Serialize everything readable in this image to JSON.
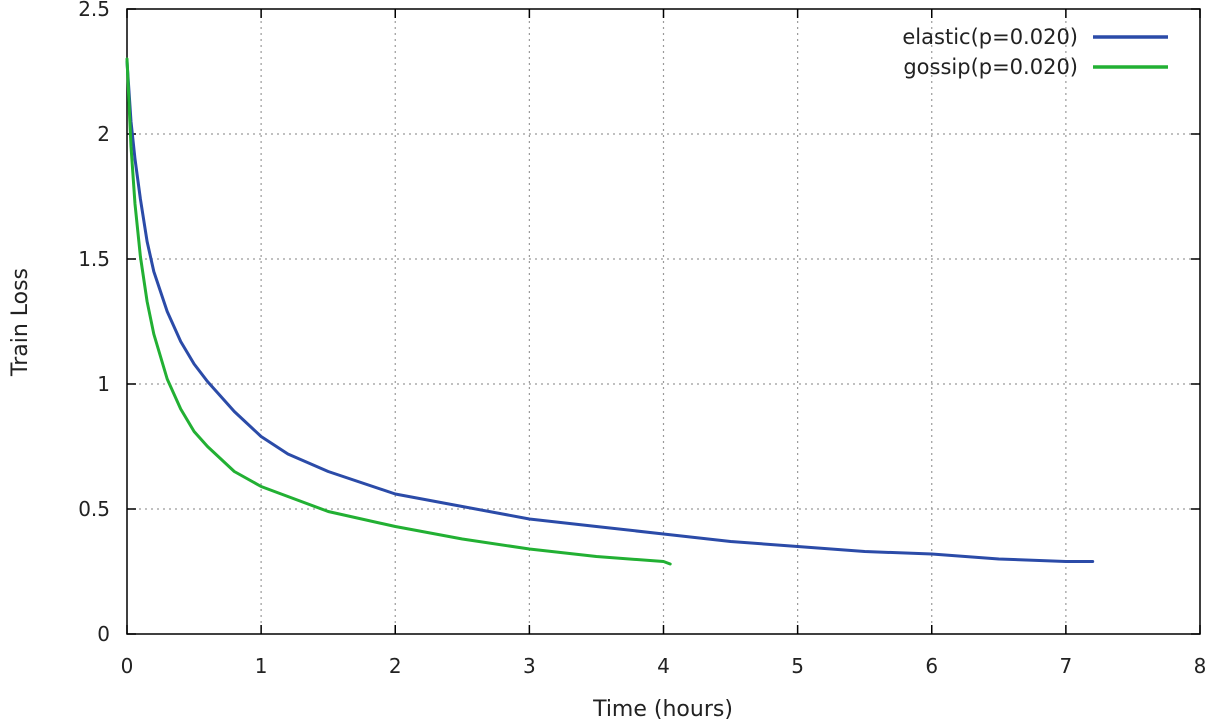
{
  "chart_data": {
    "type": "line",
    "title": "",
    "xlabel": "Time (hours)",
    "ylabel": "Train Loss",
    "xlim": [
      0,
      8
    ],
    "ylim": [
      0,
      2.5
    ],
    "x_ticks": [
      "0",
      "1",
      "2",
      "3",
      "4",
      "5",
      "6",
      "7",
      "8"
    ],
    "y_ticks": [
      "0",
      "0.5",
      "1",
      "1.5",
      "2",
      "2.5"
    ],
    "grid": true,
    "legend_position": "top-right",
    "series": [
      {
        "name": "elastic(p=0.020)",
        "color": "#2b4ba8",
        "points": [
          [
            0.0,
            2.29
          ],
          [
            0.03,
            2.05
          ],
          [
            0.06,
            1.9
          ],
          [
            0.1,
            1.74
          ],
          [
            0.15,
            1.57
          ],
          [
            0.2,
            1.45
          ],
          [
            0.3,
            1.29
          ],
          [
            0.4,
            1.17
          ],
          [
            0.5,
            1.08
          ],
          [
            0.6,
            1.01
          ],
          [
            0.8,
            0.89
          ],
          [
            1.0,
            0.79
          ],
          [
            1.2,
            0.72
          ],
          [
            1.5,
            0.65
          ],
          [
            2.0,
            0.56
          ],
          [
            2.5,
            0.51
          ],
          [
            3.0,
            0.46
          ],
          [
            3.5,
            0.43
          ],
          [
            4.0,
            0.4
          ],
          [
            4.5,
            0.37
          ],
          [
            5.0,
            0.35
          ],
          [
            5.5,
            0.33
          ],
          [
            6.0,
            0.32
          ],
          [
            6.5,
            0.3
          ],
          [
            7.0,
            0.29
          ],
          [
            7.2,
            0.29
          ]
        ]
      },
      {
        "name": "gossip(p=0.020)",
        "color": "#22b033",
        "points": [
          [
            0.0,
            2.3
          ],
          [
            0.03,
            1.95
          ],
          [
            0.06,
            1.72
          ],
          [
            0.1,
            1.51
          ],
          [
            0.15,
            1.33
          ],
          [
            0.2,
            1.2
          ],
          [
            0.3,
            1.02
          ],
          [
            0.4,
            0.9
          ],
          [
            0.5,
            0.81
          ],
          [
            0.6,
            0.75
          ],
          [
            0.8,
            0.65
          ],
          [
            1.0,
            0.59
          ],
          [
            1.2,
            0.55
          ],
          [
            1.5,
            0.49
          ],
          [
            2.0,
            0.43
          ],
          [
            2.5,
            0.38
          ],
          [
            3.0,
            0.34
          ],
          [
            3.5,
            0.31
          ],
          [
            4.0,
            0.29
          ],
          [
            4.05,
            0.28
          ]
        ]
      }
    ]
  }
}
